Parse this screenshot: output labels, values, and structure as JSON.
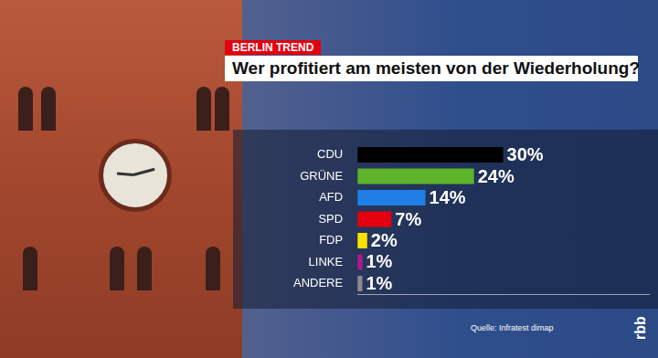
{
  "chart_data": {
    "type": "bar",
    "orientation": "horizontal",
    "kicker": "BERLIN TREND",
    "title": "Wer profitiert am meisten von der Wiederholung?",
    "categories": [
      "CDU",
      "GRÜNE",
      "AFD",
      "SPD",
      "FDP",
      "LINKE",
      "ANDERE"
    ],
    "values": [
      30,
      24,
      14,
      7,
      2,
      1,
      1
    ],
    "value_labels": [
      "30%",
      "24%",
      "14%",
      "7%",
      "2%",
      "1%",
      "1%"
    ],
    "colors": [
      "#000000",
      "#5db32a",
      "#1f7fe6",
      "#e3000f",
      "#ffe100",
      "#b0188c",
      "#8c8c8c"
    ],
    "xlim": [
      0,
      60
    ],
    "grid": false,
    "data_labels": true,
    "tick_labels": "y",
    "source": "Quelle: Infratest dimap",
    "logo": "rbb"
  }
}
